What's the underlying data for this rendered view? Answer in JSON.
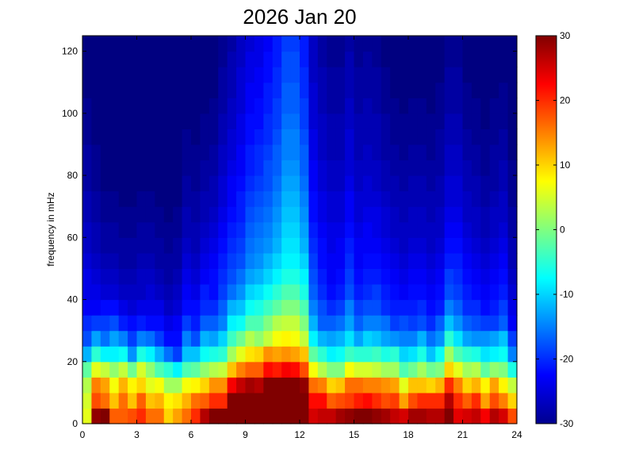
{
  "chart_data": {
    "type": "heatmap",
    "title": "2026 Jan 20",
    "xlabel": "",
    "ylabel": "frequency in mHz",
    "xlim": [
      0,
      24
    ],
    "ylim": [
      0,
      125
    ],
    "xticks": [
      "0",
      "3",
      "6",
      "9",
      "12",
      "15",
      "18",
      "21",
      "24"
    ],
    "yticks": [
      "0",
      "20",
      "40",
      "60",
      "80",
      "100",
      "120"
    ],
    "colorbar": {
      "range": [
        -30,
        30
      ],
      "ticks": [
        "-30",
        "-20",
        "-10",
        "0",
        "10",
        "20",
        "30"
      ],
      "colormap": "jet"
    },
    "grid": false,
    "x_hours": [
      0,
      0.5,
      1,
      1.5,
      2,
      2.5,
      3,
      3.5,
      4,
      4.5,
      5,
      5.5,
      6,
      6.5,
      7,
      7.5,
      8,
      8.5,
      9,
      9.5,
      10,
      10.5,
      11,
      11.5,
      12,
      12.5,
      13,
      13.5,
      14,
      14.5,
      15,
      15.5,
      16,
      16.5,
      17,
      17.5,
      18,
      18.5,
      19,
      19.5,
      20,
      20.5,
      21,
      21.5,
      22,
      22.5,
      23,
      23.5
    ],
    "y_mhz": [
      0,
      5,
      10,
      15,
      20,
      25,
      30,
      35,
      40,
      45,
      50,
      55,
      60,
      65,
      70,
      75,
      80,
      85,
      90,
      95,
      100,
      105,
      110,
      115,
      120
    ],
    "z_rows": [
      [
        6,
        29,
        30,
        17,
        17,
        18,
        20,
        16,
        16,
        10,
        13,
        16,
        20,
        27,
        30,
        30,
        30,
        30,
        30,
        30,
        30,
        30,
        30,
        30,
        30,
        25,
        26,
        26,
        28,
        29,
        30,
        30,
        29,
        28,
        26,
        25,
        28,
        28,
        27,
        27,
        30,
        24,
        25,
        26,
        23,
        27,
        25,
        18
      ],
      [
        5,
        18,
        16,
        11,
        16,
        11,
        17,
        11,
        12,
        8,
        9,
        12,
        16,
        17,
        20,
        20,
        30,
        30,
        30,
        30,
        30,
        30,
        30,
        30,
        30,
        22,
        22,
        17,
        18,
        19,
        21,
        22,
        20,
        18,
        19,
        13,
        18,
        20,
        20,
        20,
        27,
        20,
        17,
        20,
        13,
        18,
        15,
        10
      ],
      [
        3,
        15,
        13,
        7,
        12,
        8,
        10,
        6,
        7,
        2,
        2,
        7,
        8,
        10,
        14,
        14,
        23,
        26,
        28,
        27,
        30,
        30,
        30,
        30,
        29,
        16,
        15,
        10,
        11,
        16,
        16,
        15,
        15,
        14,
        13,
        6,
        11,
        11,
        10,
        12,
        20,
        15,
        10,
        12,
        8,
        13,
        8,
        4
      ],
      [
        -2,
        6,
        4,
        1,
        4,
        -1,
        5,
        1,
        -3,
        -5,
        -8,
        -3,
        -2,
        1,
        3,
        4,
        11,
        15,
        17,
        17,
        22,
        21,
        23,
        22,
        18,
        7,
        3,
        0,
        0,
        7,
        5,
        5,
        4,
        2,
        2,
        -3,
        -1,
        2,
        -1,
        0,
        10,
        6,
        2,
        3,
        -2,
        1,
        0,
        -6
      ],
      [
        -12,
        -5,
        -8,
        -8,
        -7,
        -14,
        -6,
        -8,
        -12,
        -16,
        -19,
        -11,
        -11,
        -7,
        -6,
        -5,
        2,
        6,
        9,
        10,
        14,
        13,
        14,
        13,
        11,
        -2,
        -5,
        -8,
        -7,
        -4,
        -5,
        -5,
        -4,
        -6,
        -5,
        -10,
        -9,
        -6,
        -11,
        -7,
        2,
        -3,
        -5,
        -6,
        -9,
        -8,
        -7,
        -15
      ],
      [
        -18,
        -13,
        -16,
        -13,
        -15,
        -19,
        -15,
        -16,
        -19,
        -22,
        -22,
        -15,
        -18,
        -12,
        -13,
        -10,
        -4,
        -1,
        3,
        1,
        4,
        7,
        8,
        7,
        4,
        -8,
        -12,
        -13,
        -12,
        -9,
        -13,
        -10,
        -11,
        -13,
        -14,
        -15,
        -15,
        -12,
        -16,
        -14,
        -5,
        -9,
        -13,
        -14,
        -14,
        -13,
        -11,
        -19
      ],
      [
        -20,
        -19,
        -19,
        -18,
        -21,
        -22,
        -21,
        -22,
        -22,
        -24,
        -23,
        -19,
        -21,
        -17,
        -17,
        -15,
        -8,
        -7,
        -3,
        -3,
        0,
        3,
        4,
        4,
        0,
        -12,
        -17,
        -17,
        -16,
        -13,
        -17,
        -15,
        -15,
        -16,
        -19,
        -18,
        -19,
        -18,
        -20,
        -17,
        -11,
        -14,
        -17,
        -18,
        -19,
        -19,
        -17,
        -23
      ],
      [
        -23,
        -23,
        -22,
        -22,
        -24,
        -25,
        -24,
        -24,
        -24,
        -26,
        -25,
        -22,
        -22,
        -20,
        -20,
        -17,
        -12,
        -11,
        -7,
        -6,
        -4,
        -2,
        0,
        0,
        -3,
        -15,
        -18,
        -20,
        -19,
        -15,
        -19,
        -18,
        -18,
        -20,
        -21,
        -21,
        -21,
        -20,
        -22,
        -21,
        -15,
        -17,
        -20,
        -20,
        -22,
        -21,
        -19,
        -24
      ],
      [
        -24,
        -24,
        -25,
        -25,
        -26,
        -26,
        -26,
        -25,
        -26,
        -27,
        -26,
        -23,
        -24,
        -21,
        -22,
        -19,
        -16,
        -14,
        -10,
        -9,
        -7,
        -5,
        -3,
        -3,
        -6,
        -17,
        -20,
        -22,
        -21,
        -18,
        -21,
        -20,
        -19,
        -21,
        -22,
        -23,
        -22,
        -22,
        -23,
        -22,
        -18,
        -19,
        -21,
        -22,
        -23,
        -22,
        -21,
        -25
      ],
      [
        -24,
        -25,
        -26,
        -26,
        -27,
        -27,
        -26,
        -26,
        -27,
        -28,
        -27,
        -24,
        -25,
        -23,
        -22,
        -20,
        -18,
        -16,
        -13,
        -12,
        -10,
        -8,
        -6,
        -6,
        -8,
        -18,
        -21,
        -23,
        -22,
        -19,
        -22,
        -21,
        -21,
        -22,
        -23,
        -24,
        -23,
        -23,
        -24,
        -23,
        -19,
        -20,
        -22,
        -23,
        -24,
        -23,
        -22,
        -26
      ],
      [
        -25,
        -26,
        -27,
        -27,
        -28,
        -28,
        -27,
        -27,
        -28,
        -28,
        -28,
        -25,
        -26,
        -24,
        -23,
        -21,
        -19,
        -18,
        -15,
        -14,
        -12,
        -10,
        -8,
        -8,
        -10,
        -19,
        -22,
        -23,
        -23,
        -20,
        -23,
        -22,
        -22,
        -23,
        -24,
        -25,
        -24,
        -24,
        -25,
        -24,
        -21,
        -21,
        -23,
        -24,
        -25,
        -24,
        -23,
        -27
      ],
      [
        -26,
        -27,
        -28,
        -28,
        -28,
        -28,
        -28,
        -28,
        -28,
        -29,
        -28,
        -26,
        -27,
        -25,
        -24,
        -22,
        -20,
        -19,
        -16,
        -15,
        -14,
        -12,
        -9,
        -9,
        -12,
        -20,
        -22,
        -24,
        -23,
        -21,
        -23,
        -23,
        -23,
        -24,
        -25,
        -26,
        -25,
        -25,
        -26,
        -25,
        -22,
        -22,
        -24,
        -25,
        -26,
        -25,
        -24,
        -27
      ],
      [
        -26,
        -27,
        -28,
        -28,
        -29,
        -29,
        -28,
        -28,
        -29,
        -29,
        -29,
        -27,
        -27,
        -26,
        -25,
        -23,
        -21,
        -20,
        -17,
        -16,
        -15,
        -13,
        -10,
        -10,
        -13,
        -21,
        -23,
        -24,
        -24,
        -22,
        -24,
        -23,
        -24,
        -25,
        -26,
        -26,
        -26,
        -26,
        -26,
        -26,
        -23,
        -23,
        -25,
        -26,
        -27,
        -26,
        -25,
        -28
      ],
      [
        -27,
        -28,
        -29,
        -29,
        -29,
        -29,
        -29,
        -29,
        -29,
        -30,
        -29,
        -27,
        -28,
        -27,
        -26,
        -24,
        -22,
        -21,
        -18,
        -17,
        -16,
        -14,
        -11,
        -11,
        -14,
        -22,
        -24,
        -25,
        -25,
        -23,
        -25,
        -24,
        -24,
        -25,
        -26,
        -27,
        -26,
        -26,
        -27,
        -26,
        -24,
        -24,
        -26,
        -26,
        -27,
        -26,
        -26,
        -28
      ],
      [
        -27,
        -28,
        -29,
        -29,
        -30,
        -30,
        -29,
        -29,
        -30,
        -30,
        -30,
        -28,
        -28,
        -27,
        -27,
        -25,
        -23,
        -21,
        -19,
        -18,
        -17,
        -15,
        -12,
        -12,
        -15,
        -22,
        -24,
        -25,
        -25,
        -23,
        -25,
        -25,
        -25,
        -26,
        -27,
        -27,
        -27,
        -27,
        -27,
        -27,
        -25,
        -25,
        -26,
        -27,
        -28,
        -27,
        -26,
        -29
      ],
      [
        -28,
        -29,
        -30,
        -30,
        -30,
        -30,
        -30,
        -30,
        -30,
        -30,
        -30,
        -28,
        -29,
        -28,
        -27,
        -25,
        -23,
        -22,
        -20,
        -19,
        -18,
        -16,
        -13,
        -13,
        -16,
        -23,
        -25,
        -26,
        -26,
        -24,
        -26,
        -25,
        -26,
        -27,
        -27,
        -28,
        -27,
        -27,
        -28,
        -27,
        -25,
        -25,
        -27,
        -27,
        -28,
        -28,
        -27,
        -29
      ],
      [
        -28,
        -29,
        -30,
        -30,
        -30,
        -30,
        -30,
        -30,
        -30,
        -30,
        -30,
        -29,
        -29,
        -28,
        -28,
        -26,
        -24,
        -23,
        -21,
        -20,
        -18,
        -17,
        -14,
        -14,
        -17,
        -23,
        -25,
        -26,
        -26,
        -25,
        -26,
        -26,
        -26,
        -27,
        -28,
        -28,
        -28,
        -28,
        -28,
        -28,
        -26,
        -26,
        -27,
        -28,
        -29,
        -28,
        -27,
        -29
      ],
      [
        -28,
        -29,
        -30,
        -30,
        -30,
        -30,
        -30,
        -30,
        -30,
        -30,
        -30,
        -29,
        -29,
        -29,
        -28,
        -26,
        -25,
        -23,
        -21,
        -20,
        -19,
        -17,
        -15,
        -15,
        -17,
        -24,
        -26,
        -27,
        -27,
        -25,
        -27,
        -26,
        -27,
        -28,
        -28,
        -29,
        -28,
        -28,
        -29,
        -28,
        -26,
        -26,
        -28,
        -28,
        -29,
        -28,
        -28,
        -30
      ],
      [
        -29,
        -30,
        -30,
        -30,
        -30,
        -30,
        -30,
        -30,
        -30,
        -30,
        -30,
        -29,
        -30,
        -29,
        -29,
        -27,
        -25,
        -24,
        -22,
        -21,
        -20,
        -18,
        -15,
        -15,
        -18,
        -24,
        -26,
        -27,
        -27,
        -25,
        -27,
        -27,
        -27,
        -28,
        -29,
        -29,
        -29,
        -29,
        -29,
        -28,
        -27,
        -27,
        -28,
        -29,
        -29,
        -29,
        -28,
        -30
      ],
      [
        -29,
        -30,
        -30,
        -30,
        -30,
        -30,
        -30,
        -30,
        -30,
        -30,
        -30,
        -30,
        -30,
        -29,
        -29,
        -27,
        -26,
        -24,
        -22,
        -22,
        -20,
        -19,
        -16,
        -16,
        -19,
        -25,
        -26,
        -27,
        -27,
        -26,
        -27,
        -27,
        -27,
        -28,
        -29,
        -29,
        -29,
        -29,
        -29,
        -29,
        -27,
        -27,
        -29,
        -29,
        -30,
        -29,
        -29,
        -30
      ],
      [
        -29,
        -30,
        -30,
        -30,
        -30,
        -30,
        -30,
        -30,
        -30,
        -30,
        -30,
        -30,
        -30,
        -30,
        -29,
        -28,
        -26,
        -25,
        -23,
        -22,
        -21,
        -19,
        -17,
        -17,
        -19,
        -25,
        -27,
        -28,
        -28,
        -26,
        -28,
        -27,
        -28,
        -29,
        -29,
        -30,
        -29,
        -29,
        -30,
        -29,
        -28,
        -28,
        -29,
        -29,
        -30,
        -29,
        -29,
        -30
      ],
      [
        -30,
        -30,
        -30,
        -30,
        -30,
        -30,
        -30,
        -30,
        -30,
        -30,
        -30,
        -30,
        -30,
        -30,
        -30,
        -28,
        -27,
        -25,
        -23,
        -23,
        -21,
        -20,
        -17,
        -17,
        -20,
        -25,
        -27,
        -28,
        -28,
        -27,
        -28,
        -28,
        -28,
        -29,
        -30,
        -30,
        -30,
        -30,
        -30,
        -29,
        -28,
        -28,
        -29,
        -30,
        -30,
        -30,
        -29,
        -30
      ],
      [
        -30,
        -30,
        -30,
        -30,
        -30,
        -30,
        -30,
        -30,
        -30,
        -30,
        -30,
        -30,
        -30,
        -30,
        -30,
        -28,
        -27,
        -25,
        -24,
        -23,
        -22,
        -20,
        -18,
        -18,
        -20,
        -26,
        -27,
        -28,
        -28,
        -27,
        -28,
        -28,
        -28,
        -29,
        -30,
        -30,
        -30,
        -30,
        -30,
        -30,
        -28,
        -28,
        -30,
        -30,
        -30,
        -30,
        -30,
        -30
      ],
      [
        -30,
        -30,
        -30,
        -30,
        -30,
        -30,
        -30,
        -30,
        -30,
        -30,
        -30,
        -30,
        -30,
        -30,
        -30,
        -29,
        -27,
        -26,
        -24,
        -24,
        -22,
        -21,
        -18,
        -18,
        -21,
        -26,
        -28,
        -29,
        -29,
        -27,
        -29,
        -28,
        -29,
        -30,
        -30,
        -30,
        -30,
        -30,
        -30,
        -30,
        -29,
        -29,
        -30,
        -30,
        -30,
        -30,
        -30,
        -30
      ],
      [
        -30,
        -30,
        -30,
        -30,
        -30,
        -30,
        -30,
        -30,
        -30,
        -30,
        -30,
        -30,
        -30,
        -30,
        -30,
        -29,
        -28,
        -26,
        -25,
        -24,
        -23,
        -21,
        -19,
        -19,
        -21,
        -26,
        -28,
        -29,
        -29,
        -28,
        -29,
        -29,
        -29,
        -30,
        -30,
        -30,
        -30,
        -30,
        -30,
        -30,
        -29,
        -29,
        -30,
        -30,
        -30,
        -30,
        -30,
        -30
      ]
    ]
  }
}
